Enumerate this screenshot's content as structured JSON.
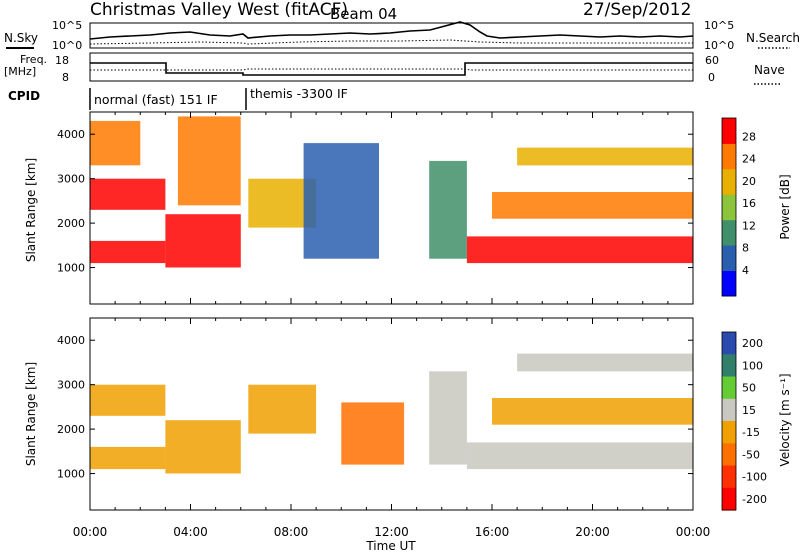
{
  "header": {
    "title": "Christmas Valley West (fitACF)",
    "beam": "Beam 04",
    "date": "27/Sep/2012"
  },
  "noise_panel": {
    "left_label": "N.Sky",
    "right_label": "N.Search",
    "tick_top": "10^5",
    "tick_bottom": "10^0"
  },
  "freq_panel": {
    "left_label_1": "Freq.",
    "left_label_2": "[MHz]",
    "tick_top": "18",
    "tick_bottom": "8",
    "right_tick_top": "60",
    "right_tick_bottom": "0",
    "right_label": "Nave"
  },
  "cpid": {
    "label": "CPID",
    "mode_1": "normal (fast) 151 IF",
    "mode_2": "themis -3300 IF"
  },
  "x_axis": {
    "label": "Time UT",
    "ticks": [
      "00:00",
      "04:00",
      "08:00",
      "12:00",
      "16:00",
      "20:00",
      "00:00"
    ]
  },
  "y_axis": {
    "label": "Slant Range [km]",
    "ticks": [
      "1000",
      "2000",
      "3000",
      "4000"
    ]
  },
  "power_colorbar": {
    "label": "Power [dB]",
    "ticks": [
      "4",
      "8",
      "12",
      "16",
      "20",
      "24",
      "28"
    ],
    "colors": [
      "#0000ff",
      "#2a5fb0",
      "#3f8f6a",
      "#8cc43c",
      "#e8b000",
      "#ff7a00",
      "#ff0000"
    ]
  },
  "velocity_colorbar": {
    "label": "Velocity [m s⁻¹]",
    "ticks": [
      "200",
      "100",
      "50",
      "15",
      "-15",
      "-50",
      "-100",
      "-200"
    ],
    "colors": [
      "#2a4ab0",
      "#2f7f6a",
      "#66cc33",
      "#c8c8c0",
      "#f0a000",
      "#ff7000",
      "#ff3000",
      "#ff0000"
    ]
  },
  "chart_data": [
    {
      "type": "heatmap",
      "title": "Power [dB]",
      "xlabel": "Time UT",
      "ylabel": "Slant Range [km]",
      "xlim": [
        0,
        24
      ],
      "ylim": [
        180,
        4500
      ],
      "clim": [
        0,
        30
      ],
      "bands": [
        {
          "start_hour": 0,
          "end_hour": 3.0,
          "range_start_km": 1100,
          "range_end_km": 1600,
          "power_db": 28
        },
        {
          "start_hour": 0,
          "end_hour": 3.0,
          "range_start_km": 2300,
          "range_end_km": 3000,
          "power_db": 26
        },
        {
          "start_hour": 0,
          "end_hour": 2.0,
          "range_start_km": 3300,
          "range_end_km": 4300,
          "power_db": 24
        },
        {
          "start_hour": 3.0,
          "end_hour": 6.0,
          "range_start_km": 1000,
          "range_end_km": 2200,
          "power_db": 26
        },
        {
          "start_hour": 3.5,
          "end_hour": 6.0,
          "range_start_km": 2400,
          "range_end_km": 4400,
          "power_db": 22
        },
        {
          "start_hour": 6.3,
          "end_hour": 9.0,
          "range_start_km": 1900,
          "range_end_km": 3000,
          "power_db": 18
        },
        {
          "start_hour": 8.5,
          "end_hour": 11.5,
          "range_start_km": 1200,
          "range_end_km": 3800,
          "power_db": 8
        },
        {
          "start_hour": 13.5,
          "end_hour": 15.0,
          "range_start_km": 1200,
          "range_end_km": 3400,
          "power_db": 10
        },
        {
          "start_hour": 15.0,
          "end_hour": 24.0,
          "range_start_km": 1100,
          "range_end_km": 1700,
          "power_db": 27
        },
        {
          "start_hour": 16.0,
          "end_hour": 24.0,
          "range_start_km": 2100,
          "range_end_km": 2700,
          "power_db": 25
        },
        {
          "start_hour": 17.0,
          "end_hour": 24.0,
          "range_start_km": 3300,
          "range_end_km": 3700,
          "power_db": 20
        }
      ]
    },
    {
      "type": "heatmap",
      "title": "Velocity [m s⁻¹]",
      "xlabel": "Time UT",
      "ylabel": "Slant Range [km]",
      "xlim": [
        0,
        24
      ],
      "ylim": [
        180,
        4500
      ],
      "clim": [
        -200,
        200
      ],
      "bands": [
        {
          "start_hour": 0,
          "end_hour": 3.0,
          "range_start_km": 1100,
          "range_end_km": 1600,
          "velocity": -10
        },
        {
          "start_hour": 0,
          "end_hour": 3.0,
          "range_start_km": 2300,
          "range_end_km": 3000,
          "velocity": -30
        },
        {
          "start_hour": 3.0,
          "end_hour": 6.0,
          "range_start_km": 1000,
          "range_end_km": 2200,
          "velocity": -40
        },
        {
          "start_hour": 6.3,
          "end_hour": 9.0,
          "range_start_km": 1900,
          "range_end_km": 3000,
          "velocity": -10
        },
        {
          "start_hour": 10.0,
          "end_hour": 12.5,
          "range_start_km": 1200,
          "range_end_km": 2600,
          "velocity": -60
        },
        {
          "start_hour": 13.5,
          "end_hour": 15.0,
          "range_start_km": 1200,
          "range_end_km": 3300,
          "velocity": 40
        },
        {
          "start_hour": 15.0,
          "end_hour": 24.0,
          "range_start_km": 1100,
          "range_end_km": 1700,
          "velocity": 0
        },
        {
          "start_hour": 16.0,
          "end_hour": 24.0,
          "range_start_km": 2100,
          "range_end_km": 2700,
          "velocity": -5
        },
        {
          "start_hour": 17.0,
          "end_hour": 24.0,
          "range_start_km": 3300,
          "range_end_km": 3700,
          "velocity": 0
        }
      ]
    }
  ]
}
